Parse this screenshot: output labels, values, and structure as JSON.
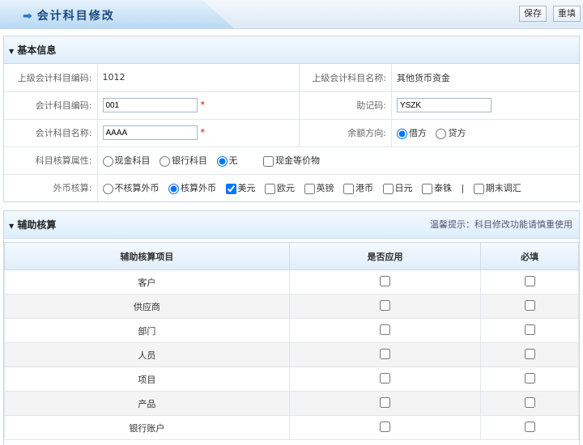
{
  "header": {
    "title": "会计科目修改",
    "save": "保存",
    "reset": "重填"
  },
  "basic": {
    "title": "基本信息",
    "parent_code_label": "上级会计科目编码:",
    "parent_code": "1012",
    "parent_name_label": "上级会计科目名称:",
    "parent_name": "其他货币资金",
    "code_label": "会计科目编码:",
    "code": "001",
    "mnemonic_label": "助记码:",
    "mnemonic": "YSZK",
    "name_label": "会计科目名称:",
    "name": "AAAA",
    "balance_label": "余额方向:",
    "balance_options": [
      "借方",
      "贷方"
    ],
    "balance_selected": "借方",
    "attr_label": "科目核算属性:",
    "attr_options": [
      "现金科目",
      "银行科目",
      "无"
    ],
    "attr_selected": "无",
    "cash_equiv": "现金等价物",
    "fx_label": "外币核算:",
    "fx_options": [
      "不核算外币",
      "核算外币"
    ],
    "fx_selected": "核算外币",
    "currencies": [
      {
        "label": "美元",
        "checked": true
      },
      {
        "label": "欧元",
        "checked": false
      },
      {
        "label": "英镑",
        "checked": false
      },
      {
        "label": "港币",
        "checked": false
      },
      {
        "label": "日元",
        "checked": false
      },
      {
        "label": "泰铢",
        "checked": false
      }
    ],
    "separator": "|",
    "period_adjust": "期末调汇"
  },
  "aux": {
    "title": "辅助核算",
    "tip": "温馨提示：科目修改功能请慎重使用",
    "columns": [
      "辅助核算项目",
      "是否应用",
      "必填"
    ],
    "rows": [
      "客户",
      "供应商",
      "部门",
      "人员",
      "项目",
      "产品",
      "银行账户"
    ]
  }
}
